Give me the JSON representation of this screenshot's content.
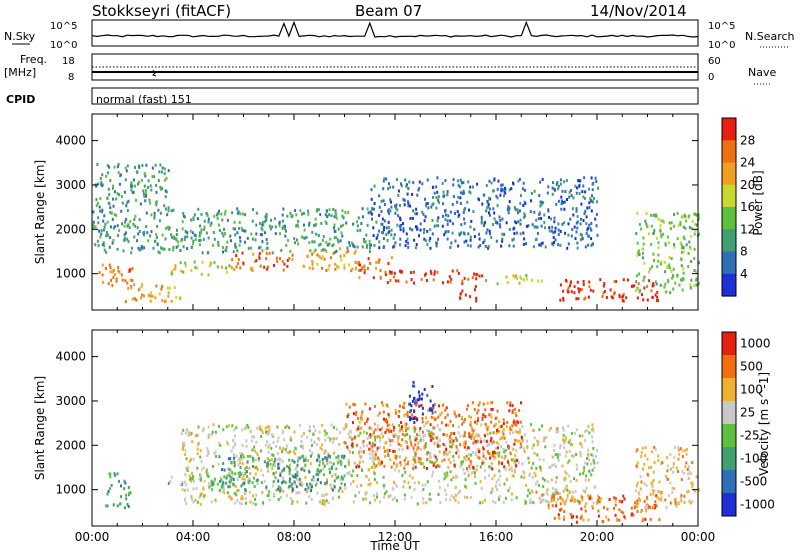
{
  "header": {
    "station": "Stokkseyri (fitACF)",
    "beam": "Beam 07",
    "date": "14/Nov/2014"
  },
  "strip": {
    "nsky_label": "N.Sky",
    "nsearch_label": "N.Search",
    "noise_ticks_left": [
      "10^5",
      "10^0"
    ],
    "noise_ticks_right": [
      "10^5",
      "10^0"
    ],
    "freq_label": "Freq.",
    "freq_unit": "[MHz]",
    "freq_ticks": [
      "18",
      "8"
    ],
    "nave_label": "Nave",
    "nave_ticks": [
      "60",
      "0"
    ],
    "cpid_label": "CPID",
    "cpid_value": "normal (fast) 151"
  },
  "chart_data": [
    {
      "type": "heatmap",
      "name": "power",
      "ylabel": "Slant Range [km]",
      "yticks": [
        "1000",
        "2000",
        "3000",
        "4000"
      ],
      "ylim": [
        180,
        4600
      ],
      "xlabel": "",
      "xlim": [
        0,
        24
      ],
      "colorbar_label": "Power [dB]",
      "colorbar_ticks": [
        "4",
        "8",
        "12",
        "16",
        "20",
        "24",
        "28"
      ],
      "colors": [
        "#1f2fd8",
        "#2f6fb8",
        "#3f9f6f",
        "#5fbf3f",
        "#c8d830",
        "#f0a020",
        "#f07010",
        "#e82010"
      ],
      "scatter_regions": [
        {
          "x": [
            0.2,
            1.6
          ],
          "r": [
            700,
            1300
          ],
          "level": 6
        },
        {
          "x": [
            1.2,
            3.5
          ],
          "r": [
            400,
            800
          ],
          "level": 5
        },
        {
          "x": [
            3.0,
            5.5
          ],
          "r": [
            1000,
            1300
          ],
          "level": 4
        },
        {
          "x": [
            5.5,
            8.0
          ],
          "r": [
            1100,
            1500
          ],
          "level": 6
        },
        {
          "x": [
            8.0,
            10.5
          ],
          "r": [
            1100,
            1600
          ],
          "level": 5
        },
        {
          "x": [
            10.5,
            12.0
          ],
          "r": [
            900,
            1400
          ],
          "level": 6
        },
        {
          "x": [
            11.5,
            15.5
          ],
          "r": [
            800,
            1100
          ],
          "level": 7
        },
        {
          "x": [
            14.5,
            15.2
          ],
          "r": [
            400,
            800
          ],
          "level": 7
        },
        {
          "x": [
            15.5,
            18.0
          ],
          "r": [
            800,
            1000
          ],
          "level": 4
        },
        {
          "x": [
            18.5,
            22.5
          ],
          "r": [
            400,
            900
          ],
          "level": 7
        },
        {
          "x": [
            3.0,
            11.0
          ],
          "r": [
            1500,
            2500
          ],
          "level": 2
        },
        {
          "x": [
            11.0,
            20.0
          ],
          "r": [
            1600,
            3200
          ],
          "level": 1
        },
        {
          "x": [
            0.0,
            3.0
          ],
          "r": [
            1500,
            3500
          ],
          "level": 2
        },
        {
          "x": [
            21.5,
            24.0
          ],
          "r": [
            600,
            2400
          ],
          "level": 3
        }
      ]
    },
    {
      "type": "heatmap",
      "name": "velocity",
      "ylabel": "Slant Range [km]",
      "yticks": [
        "1000",
        "2000",
        "3000",
        "4000"
      ],
      "ylim": [
        180,
        4600
      ],
      "xlabel": "Time UT",
      "xticks": [
        "00:00",
        "04:00",
        "08:00",
        "12:00",
        "16:00",
        "20:00",
        "00:00"
      ],
      "xlim": [
        0,
        24
      ],
      "colorbar_label": "Velocity [m s^-1]",
      "colorbar_ticks": [
        "1000",
        "500",
        "100",
        "25",
        "-25",
        "-100",
        "-500",
        "-1000"
      ],
      "colors": [
        "#1f2fd8",
        "#2f6fb8",
        "#3f9f6f",
        "#5fbf3f",
        "#c8c8c8",
        "#f0b030",
        "#f07010",
        "#e82010"
      ],
      "scatter_regions": [
        {
          "x": [
            3.5,
            20.0
          ],
          "r": [
            700,
            2500
          ],
          "level": 4
        },
        {
          "x": [
            5.0,
            10.0
          ],
          "r": [
            1000,
            1800
          ],
          "level": 2
        },
        {
          "x": [
            3.0,
            5.5
          ],
          "r": [
            1000,
            1400
          ],
          "level": 3
        },
        {
          "x": [
            0.5,
            1.5
          ],
          "r": [
            600,
            1400
          ],
          "level": 2
        },
        {
          "x": [
            18.0,
            22.5
          ],
          "r": [
            300,
            900
          ],
          "level": 6
        },
        {
          "x": [
            17.5,
            19.0
          ],
          "r": [
            600,
            1000
          ],
          "level": 5
        },
        {
          "x": [
            10.0,
            17.0
          ],
          "r": [
            1500,
            3000
          ],
          "level": 6
        },
        {
          "x": [
            12.5,
            13.5
          ],
          "r": [
            2500,
            3500
          ],
          "level": 0
        },
        {
          "x": [
            21.5,
            24.0
          ],
          "r": [
            600,
            2000
          ],
          "level": 5
        }
      ]
    }
  ]
}
